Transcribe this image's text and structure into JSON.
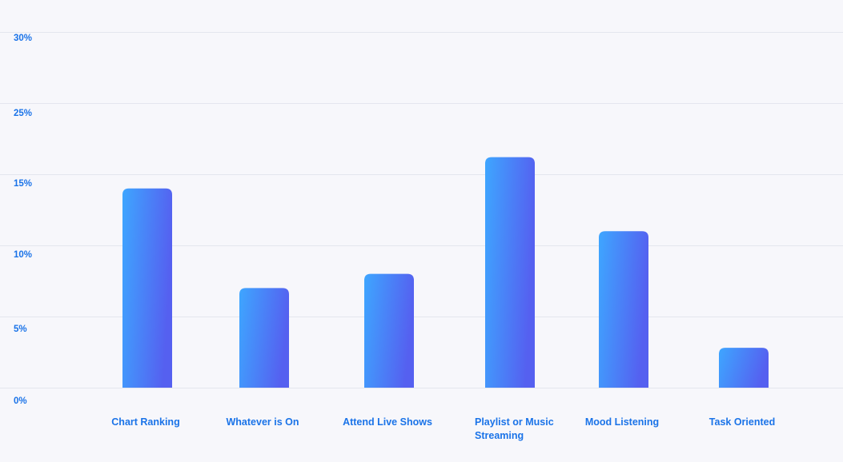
{
  "chart_data": {
    "type": "bar",
    "title": "",
    "xlabel": "",
    "ylabel": "",
    "y_ticks": [
      "0%",
      "5%",
      "10%",
      "15%",
      "25%",
      "30%"
    ],
    "categories": [
      "Chart Ranking",
      "Whatever is On",
      "Attend Live Shows",
      "Playlist or Music Streaming",
      "Mood Listening",
      "Task Oriented"
    ],
    "category_label_lines": [
      [
        "Chart Ranking"
      ],
      [
        "Whatever is On"
      ],
      [
        "Attend Live Shows"
      ],
      [
        "Playlist or Music",
        "Streaming"
      ],
      [
        "Mood Listening"
      ],
      [
        "Task Oriented"
      ]
    ],
    "values": [
      14,
      7,
      8,
      16.2,
      11,
      2.8
    ],
    "unit": "%",
    "grid": true,
    "legend": "none",
    "colors": {
      "bar_start": "#3ea6ff",
      "bar_end": "#5560f0",
      "label": "#1a73e8",
      "grid": "#e4e6ee",
      "background": "#f7f7fb"
    }
  }
}
